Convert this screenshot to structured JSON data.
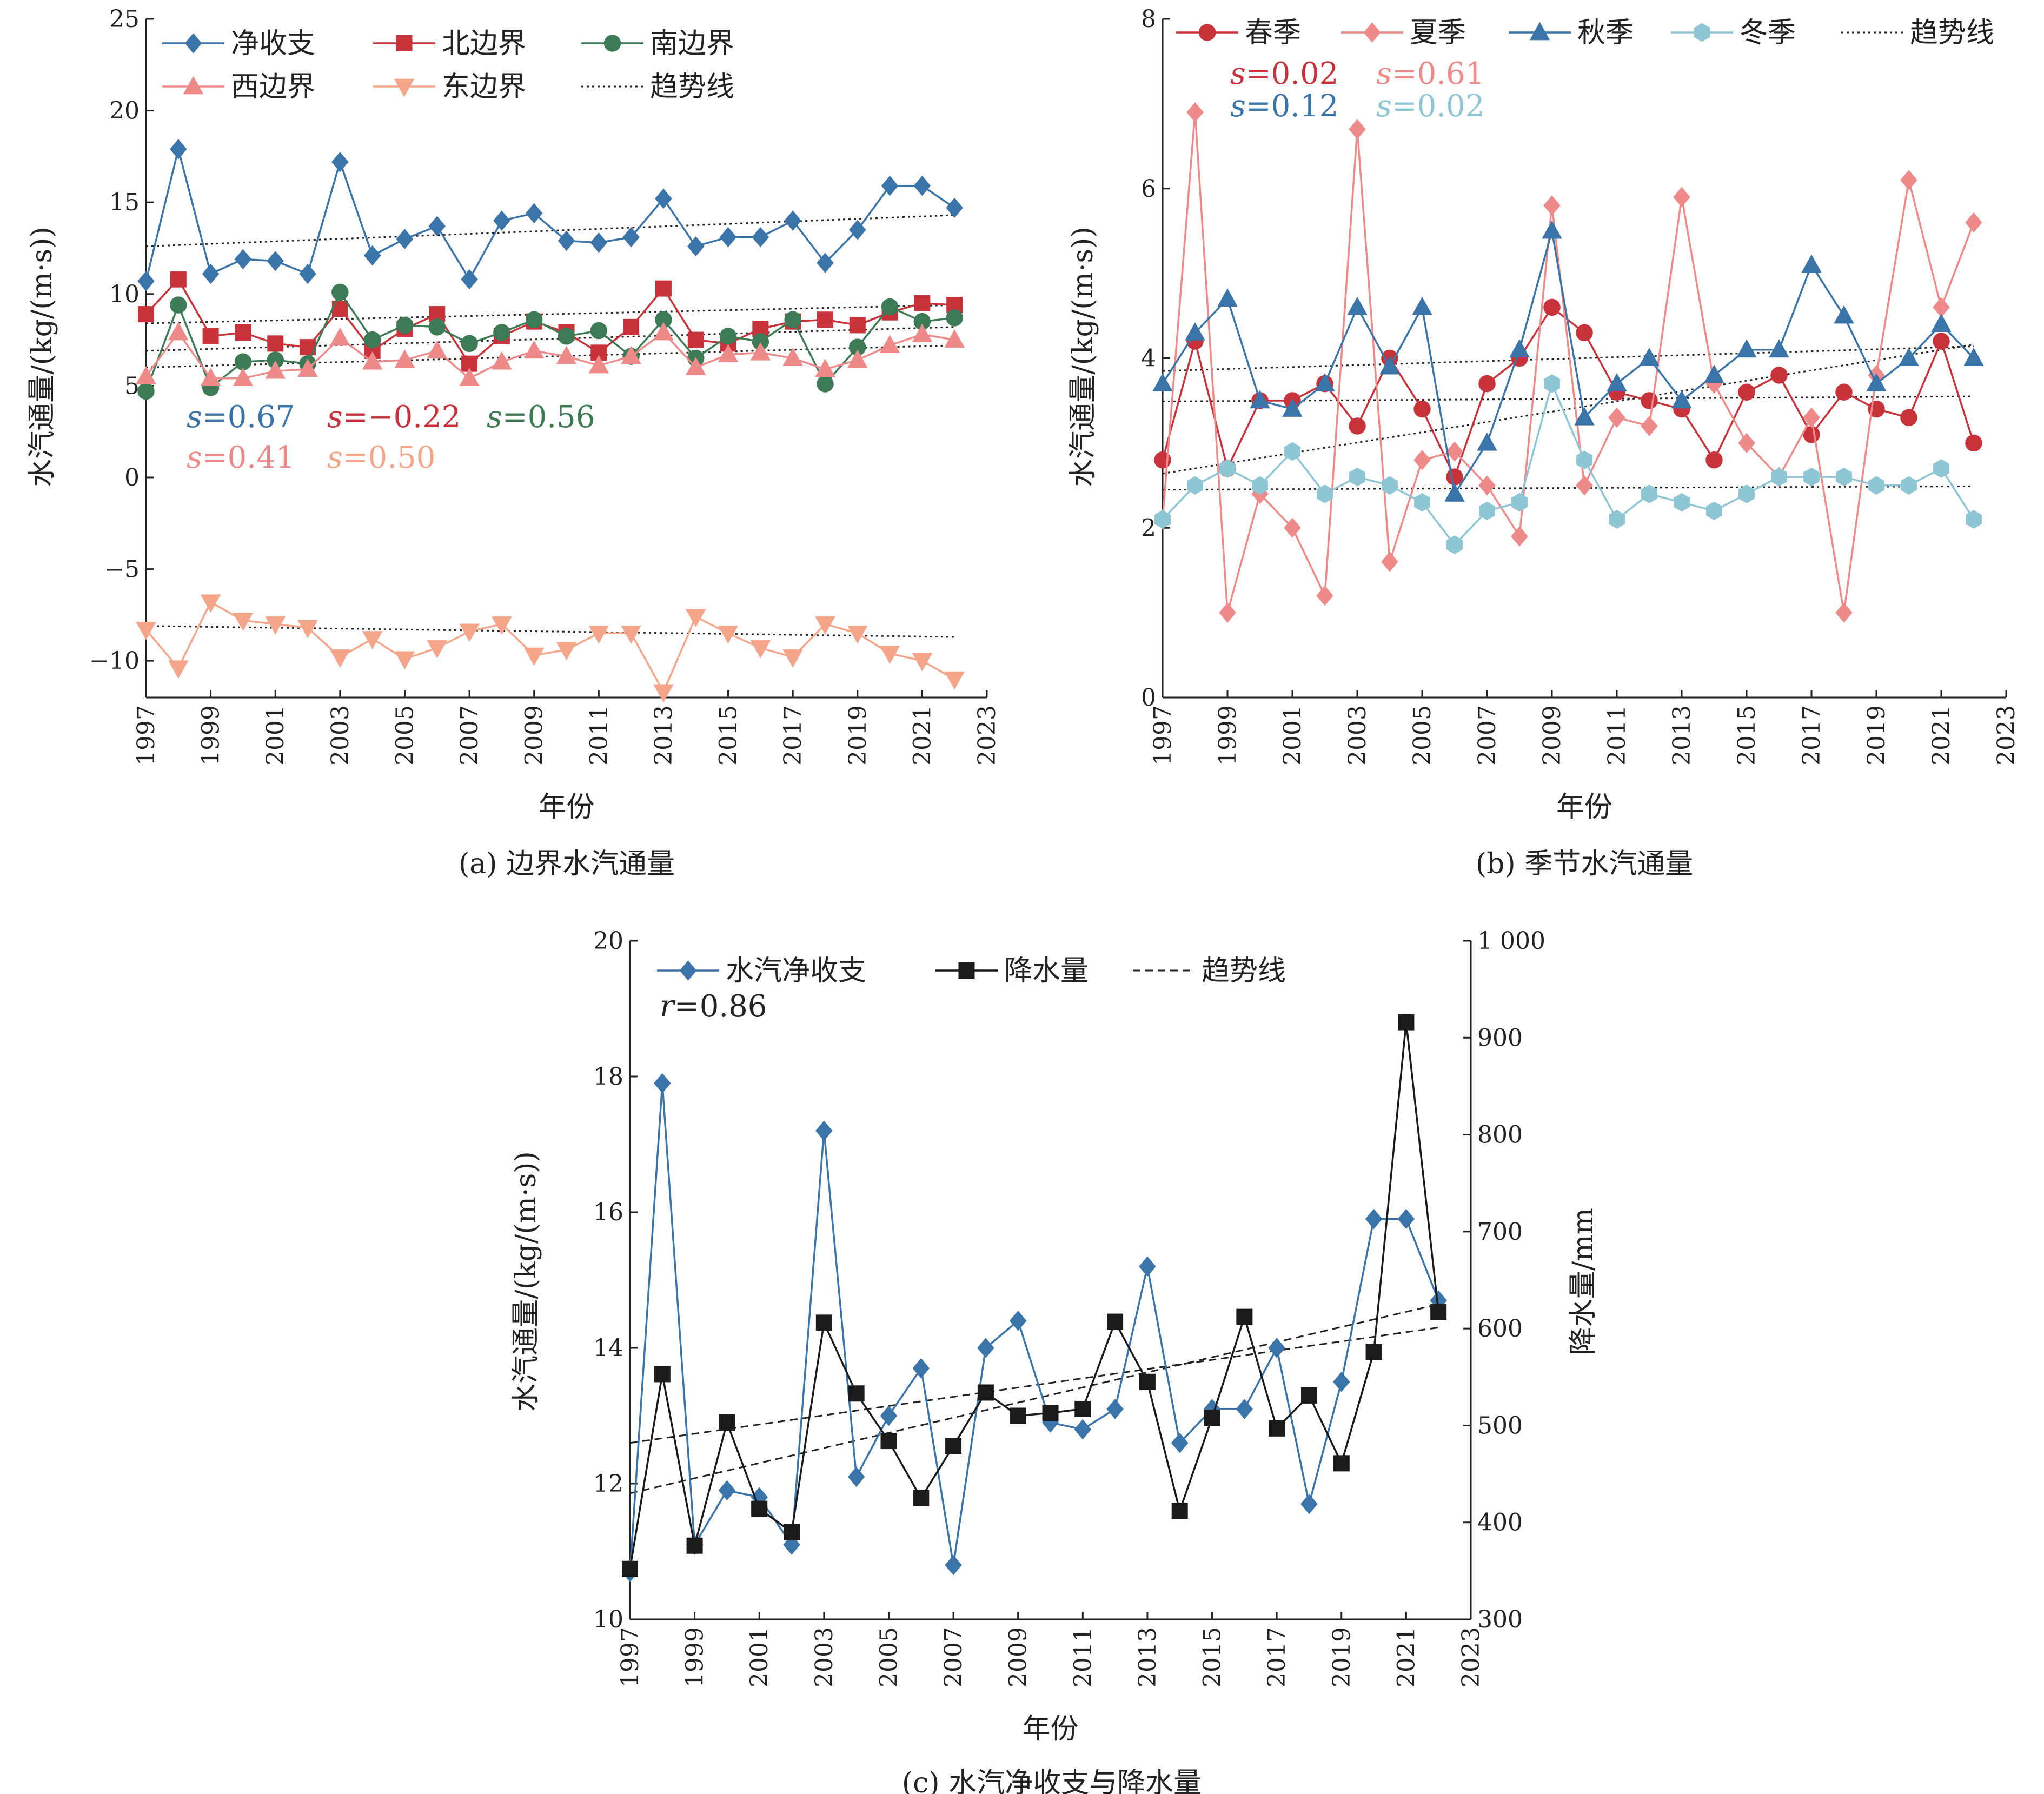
{
  "chart_data": [
    {
      "id": "a",
      "type": "line",
      "caption": "(a) 边界水汽通量",
      "xlabel": "年份",
      "ylabel": "水汽通量/(kg/(m·s))",
      "xlim": [
        1997,
        2023
      ],
      "ylim": [
        -12,
        25
      ],
      "x_ticks": [
        1997,
        1999,
        2001,
        2003,
        2005,
        2007,
        2009,
        2011,
        2013,
        2015,
        2017,
        2019,
        2021,
        2023
      ],
      "y_ticks": [
        -10,
        -5,
        0,
        5,
        10,
        15,
        20,
        25
      ],
      "y_tick_labels": [
        "−10",
        "−5",
        "0",
        "5",
        "10",
        "15",
        "20",
        "25"
      ],
      "x": [
        1997,
        1998,
        1999,
        2000,
        2001,
        2002,
        2003,
        2004,
        2005,
        2006,
        2007,
        2008,
        2009,
        2010,
        2011,
        2012,
        2013,
        2014,
        2015,
        2016,
        2017,
        2018,
        2019,
        2020,
        2021,
        2022
      ],
      "series": [
        {
          "name": "净收支",
          "color": "#3a74a8",
          "marker": "diamond",
          "values": [
            10.7,
            17.9,
            11.1,
            11.9,
            11.8,
            11.1,
            17.2,
            12.1,
            13.0,
            13.7,
            10.8,
            14.0,
            14.4,
            12.9,
            12.8,
            13.1,
            15.2,
            12.6,
            13.1,
            13.1,
            14.0,
            11.7,
            13.5,
            15.9,
            15.9,
            14.7
          ],
          "trend": [
            12.6,
            14.3
          ]
        },
        {
          "name": "北边界",
          "color": "#c8323a",
          "marker": "square",
          "values": [
            8.9,
            10.8,
            7.7,
            7.9,
            7.3,
            7.1,
            9.2,
            6.9,
            8.1,
            8.9,
            6.2,
            7.7,
            8.5,
            7.9,
            6.8,
            8.2,
            10.3,
            7.5,
            7.3,
            8.1,
            8.5,
            8.6,
            8.3,
            9.0,
            9.5,
            9.4
          ],
          "trend": [
            8.4,
            9.4
          ]
        },
        {
          "name": "南边界",
          "color": "#3d7a56",
          "marker": "circle",
          "values": [
            4.7,
            9.4,
            4.9,
            6.3,
            6.4,
            6.2,
            10.1,
            7.5,
            8.3,
            8.2,
            7.3,
            7.9,
            8.6,
            7.7,
            8.0,
            6.6,
            8.6,
            6.5,
            7.7,
            7.4,
            8.6,
            5.1,
            7.1,
            9.3,
            8.5,
            8.7
          ],
          "trend": [
            6.9,
            8.2
          ]
        },
        {
          "name": "西边界",
          "color": "#ef8a8a",
          "marker": "triangle-up",
          "values": [
            5.5,
            7.9,
            5.4,
            5.4,
            5.8,
            5.9,
            7.6,
            6.3,
            6.4,
            6.9,
            5.4,
            6.3,
            6.9,
            6.6,
            6.1,
            6.6,
            7.9,
            6.0,
            6.7,
            6.8,
            6.5,
            5.9,
            6.4,
            7.2,
            7.8,
            7.5
          ],
          "trend": [
            6.0,
            7.2
          ]
        },
        {
          "name": "东边界",
          "color": "#f5a68a",
          "marker": "triangle-down",
          "values": [
            -8.3,
            -10.4,
            -6.8,
            -7.8,
            -8.0,
            -8.2,
            -9.8,
            -8.8,
            -9.9,
            -9.3,
            -8.4,
            -8.0,
            -9.7,
            -9.4,
            -8.5,
            -8.5,
            -11.7,
            -7.6,
            -8.5,
            -9.3,
            -9.8,
            -8.0,
            -8.5,
            -9.6,
            -10.0,
            -11.0
          ],
          "trend": [
            -8.1,
            -8.7
          ]
        }
      ],
      "trend_label": "趋势线",
      "annotations": [
        {
          "italic": "s",
          "text": "=0.67",
          "color": "#3a74a8"
        },
        {
          "italic": "s",
          "text": "=−0.22",
          "color": "#c8323a"
        },
        {
          "italic": "s",
          "text": "=0.56",
          "color": "#3d7a56"
        },
        {
          "italic": "s",
          "text": "=0.41",
          "color": "#ef8a8a"
        },
        {
          "italic": "s",
          "text": "=0.50",
          "color": "#f5a68a"
        }
      ]
    },
    {
      "id": "b",
      "type": "line",
      "caption": "(b) 季节水汽通量",
      "xlabel": "年份",
      "ylabel": "水汽通量/(kg/(m·s))",
      "xlim": [
        1997,
        2023
      ],
      "ylim": [
        0,
        8
      ],
      "x_ticks": [
        1997,
        1999,
        2001,
        2003,
        2005,
        2007,
        2009,
        2011,
        2013,
        2015,
        2017,
        2019,
        2021,
        2023
      ],
      "y_ticks": [
        0,
        2,
        4,
        6,
        8
      ],
      "y_tick_labels": [
        "0",
        "2",
        "4",
        "6",
        "8"
      ],
      "x": [
        1997,
        1998,
        1999,
        2000,
        2001,
        2002,
        2003,
        2004,
        2005,
        2006,
        2007,
        2008,
        2009,
        2010,
        2011,
        2012,
        2013,
        2014,
        2015,
        2016,
        2017,
        2018,
        2019,
        2020,
        2021,
        2022
      ],
      "series": [
        {
          "name": "春季",
          "color": "#c8323a",
          "marker": "circle",
          "values": [
            2.8,
            4.2,
            2.7,
            3.5,
            3.5,
            3.7,
            3.2,
            4.0,
            3.4,
            2.6,
            3.7,
            4.0,
            4.6,
            4.3,
            3.6,
            3.5,
            3.4,
            2.8,
            3.6,
            3.8,
            3.1,
            3.6,
            3.4,
            3.3,
            4.2,
            3.0
          ],
          "trend": [
            3.49,
            3.55
          ]
        },
        {
          "name": "夏季",
          "color": "#ef8a8a",
          "marker": "diamond",
          "values": [
            2.1,
            6.9,
            1.0,
            2.4,
            2.0,
            1.2,
            6.7,
            1.6,
            2.8,
            2.9,
            2.5,
            1.9,
            5.8,
            2.5,
            3.3,
            3.2,
            5.9,
            3.7,
            3.0,
            2.6,
            3.3,
            1.0,
            3.8,
            6.1,
            4.6,
            5.6
          ],
          "trend": [
            2.64,
            4.16
          ]
        },
        {
          "name": "秋季",
          "color": "#3a74a8",
          "marker": "triangle-up",
          "values": [
            3.7,
            4.3,
            4.7,
            3.5,
            3.4,
            3.7,
            4.6,
            3.9,
            4.6,
            2.4,
            3.0,
            4.1,
            5.5,
            3.3,
            3.7,
            4.0,
            3.5,
            3.8,
            4.1,
            4.1,
            5.1,
            4.5,
            3.7,
            4.0,
            4.4,
            4.0
          ],
          "trend": [
            3.85,
            4.14
          ]
        },
        {
          "name": "冬季",
          "color": "#8fc6d4",
          "marker": "hexagon",
          "values": [
            2.1,
            2.5,
            2.7,
            2.5,
            2.9,
            2.4,
            2.6,
            2.5,
            2.3,
            1.8,
            2.2,
            2.3,
            3.7,
            2.8,
            2.1,
            2.4,
            2.3,
            2.2,
            2.4,
            2.6,
            2.6,
            2.6,
            2.5,
            2.5,
            2.7,
            2.1
          ],
          "trend": [
            2.45,
            2.49
          ]
        }
      ],
      "trend_label": "趋势线",
      "annotations": [
        {
          "italic": "s",
          "text": "=0.02",
          "color": "#c8323a"
        },
        {
          "italic": "s",
          "text": "=0.61",
          "color": "#ef8a8a"
        },
        {
          "italic": "s",
          "text": "=0.12",
          "color": "#3a74a8"
        },
        {
          "italic": "s",
          "text": "=0.02",
          "color": "#8fc6d4"
        }
      ]
    },
    {
      "id": "c",
      "type": "line",
      "caption": "(c) 水汽净收支与降水量",
      "xlabel": "年份",
      "ylabel": "水汽通量/(kg/(m·s))",
      "ylabel_right": "降水量/mm",
      "xlim": [
        1997,
        2023
      ],
      "ylim": [
        10,
        20
      ],
      "ylim_right": [
        300,
        1000
      ],
      "x_ticks": [
        1997,
        1999,
        2001,
        2003,
        2005,
        2007,
        2009,
        2011,
        2013,
        2015,
        2017,
        2019,
        2021,
        2023
      ],
      "y_ticks": [
        10,
        12,
        14,
        16,
        18,
        20
      ],
      "y_tick_labels": [
        "10",
        "12",
        "14",
        "16",
        "18",
        "20"
      ],
      "y_ticks_right": [
        300,
        400,
        500,
        600,
        700,
        800,
        900,
        1000
      ],
      "y_tick_labels_right": [
        "300",
        "400",
        "500",
        "600",
        "700",
        "800",
        "900",
        "1 000"
      ],
      "x": [
        1997,
        1998,
        1999,
        2000,
        2001,
        2002,
        2003,
        2004,
        2005,
        2006,
        2007,
        2008,
        2009,
        2010,
        2011,
        2012,
        2013,
        2014,
        2015,
        2016,
        2017,
        2018,
        2019,
        2020,
        2021,
        2022
      ],
      "series": [
        {
          "name": "水汽净收支",
          "color": "#3a74a8",
          "marker": "diamond",
          "axis": "left",
          "values": [
            10.7,
            17.9,
            11.1,
            11.9,
            11.8,
            11.1,
            17.2,
            12.1,
            13.0,
            13.7,
            10.8,
            14.0,
            14.4,
            12.9,
            12.8,
            13.1,
            15.2,
            12.6,
            13.1,
            13.1,
            14.0,
            11.7,
            13.5,
            15.9,
            15.9,
            14.7
          ],
          "trend": [
            12.6,
            14.3
          ]
        },
        {
          "name": "降水量",
          "color": "#1a1a1a",
          "marker": "square",
          "axis": "right",
          "values": [
            352,
            553,
            376,
            503,
            414,
            390,
            606,
            533,
            484,
            425,
            479,
            534,
            510,
            513,
            517,
            607,
            545,
            412,
            508,
            612,
            497,
            531,
            461,
            576,
            916,
            617
          ],
          "trend": [
            430,
            625
          ]
        }
      ],
      "trend_label": "趋势线",
      "annotations": [
        {
          "italic": "r",
          "text": "=0.86",
          "color": "#222222"
        }
      ]
    }
  ]
}
